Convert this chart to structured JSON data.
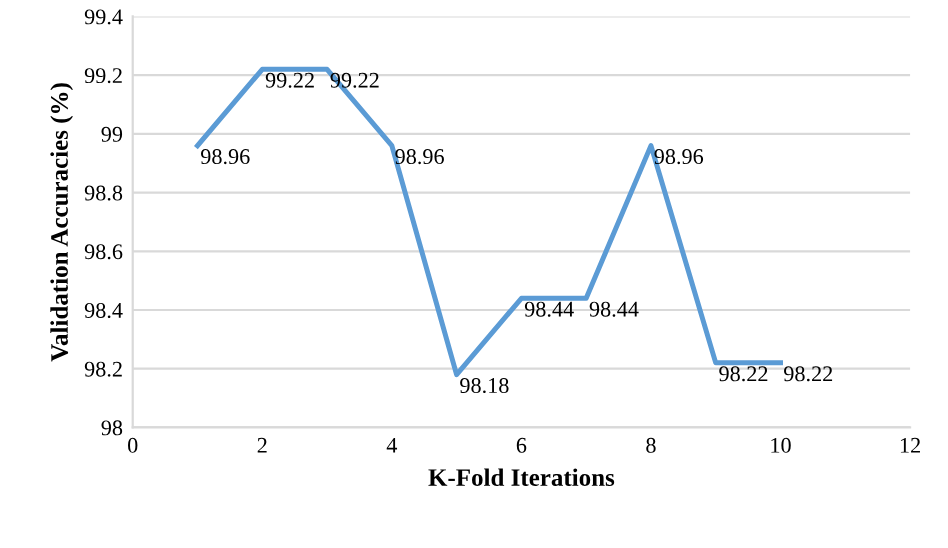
{
  "chart_data": {
    "type": "line",
    "xlabel": "K-Fold Iterations",
    "ylabel": "Validation Accuracies (%)",
    "x": [
      1,
      2,
      3,
      4,
      5,
      6,
      7,
      8,
      9,
      10
    ],
    "series": [
      {
        "color": "#5b9bd5",
        "values": [
          98.96,
          99.22,
          99.22,
          98.96,
          98.18,
          98.44,
          98.44,
          98.96,
          98.22,
          98.22
        ]
      }
    ],
    "data_labels": true,
    "xlim": [
      0,
      12
    ],
    "xticks": [
      0,
      2,
      4,
      6,
      8,
      10,
      12
    ],
    "ylim": [
      98,
      99.4
    ],
    "yticks": [
      98,
      98.2,
      98.4,
      98.6,
      98.8,
      99,
      99.2,
      99.4
    ],
    "grid": "y",
    "legend": false,
    "marker": "none",
    "line_style": "solid"
  }
}
